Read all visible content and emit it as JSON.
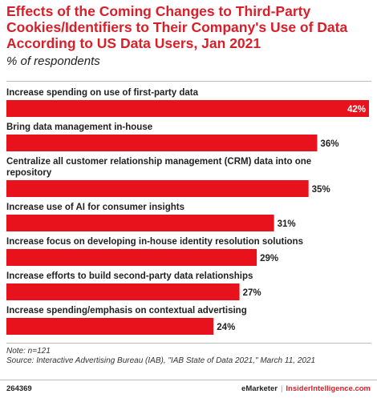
{
  "header": {
    "title": "Effects of the Coming Changes to Third-Party Cookies/Identifiers to Their Company's Use of Data According to US Data Users, Jan 2021",
    "subtitle": "% of respondents"
  },
  "chart_data": {
    "type": "bar",
    "orientation": "horizontal",
    "categories": [
      "Increase spending on use of first-party data",
      "Bring data management in-house",
      "Centralize all customer relationship management (CRM) data into one repository",
      "Increase use of AI for consumer insights",
      "Increase focus on developing in-house identity resolution solutions",
      "Increase efforts to build second-party data relationships",
      "Increase spending/emphasis on contextual advertising"
    ],
    "category_lines": [
      [
        "Increase spending on use of first-party data"
      ],
      [
        "Bring data management in-house"
      ],
      [
        "Centralize all customer relationship management (CRM) data into one",
        "repository"
      ],
      [
        "Increase use of AI for consumer insights"
      ],
      [
        "Increase focus on developing in-house identity resolution solutions"
      ],
      [
        "Increase efforts to build second-party data relationships"
      ],
      [
        "Increase spending/emphasis on contextual advertising"
      ]
    ],
    "values": [
      42,
      36,
      35,
      31,
      29,
      27,
      24
    ],
    "value_labels": [
      "42%",
      "36%",
      "35%",
      "31%",
      "29%",
      "27%",
      "24%"
    ],
    "xlim": [
      0,
      42
    ],
    "grid": false,
    "legend": "none",
    "bar_color": "#e8121d"
  },
  "footer": {
    "note": "Note: n=121",
    "source": "Source: Interactive Advertising Bureau (IAB), \"IAB State of Data 2021,\" March 11, 2021",
    "chart_id": "264369",
    "brand_emarketer": "eMarketer",
    "brand_separator": "|",
    "brand_insider": "InsiderIntelligence.com"
  }
}
